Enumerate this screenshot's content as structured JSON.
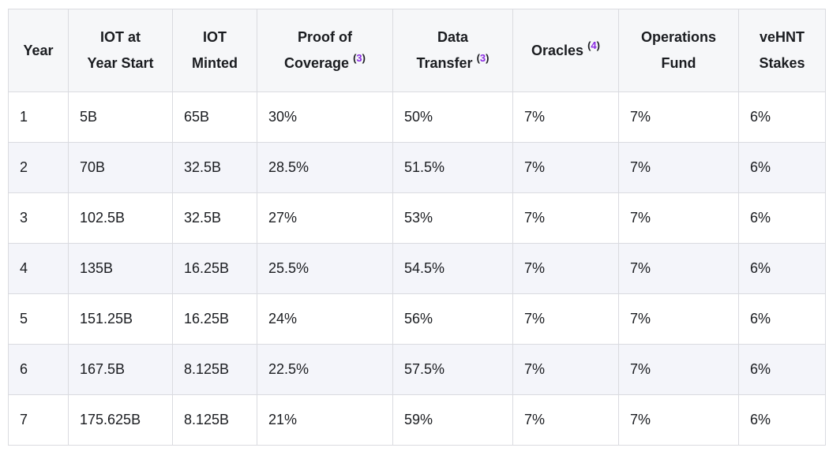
{
  "table": {
    "columns": [
      {
        "id": "year",
        "lines": [
          "Year"
        ],
        "footnote": null
      },
      {
        "id": "iot-at-year-start",
        "lines": [
          "IOT at",
          "Year Start"
        ],
        "footnote": null
      },
      {
        "id": "iot-minted",
        "lines": [
          "IOT",
          "Minted"
        ],
        "footnote": null
      },
      {
        "id": "proof-of-coverage",
        "lines": [
          "Proof of",
          "Coverage"
        ],
        "footnote": "3"
      },
      {
        "id": "data-transfer",
        "lines": [
          "Data",
          "Transfer"
        ],
        "footnote": "3"
      },
      {
        "id": "oracles",
        "lines": [
          "Oracles"
        ],
        "footnote": "4"
      },
      {
        "id": "operations-fund",
        "lines": [
          "Operations",
          "Fund"
        ],
        "footnote": null
      },
      {
        "id": "vehnt-stakes",
        "lines": [
          "veHNT",
          "Stakes"
        ],
        "footnote": null
      }
    ],
    "rows": [
      [
        "1",
        "5B",
        "65B",
        "30%",
        "50%",
        "7%",
        "7%",
        "6%"
      ],
      [
        "2",
        "70B",
        "32.5B",
        "28.5%",
        "51.5%",
        "7%",
        "7%",
        "6%"
      ],
      [
        "3",
        "102.5B",
        "32.5B",
        "27%",
        "53%",
        "7%",
        "7%",
        "6%"
      ],
      [
        "4",
        "135B",
        "16.25B",
        "25.5%",
        "54.5%",
        "7%",
        "7%",
        "6%"
      ],
      [
        "5",
        "151.25B",
        "16.25B",
        "24%",
        "56%",
        "7%",
        "7%",
        "6%"
      ],
      [
        "6",
        "167.5B",
        "8.125B",
        "22.5%",
        "57.5%",
        "7%",
        "7%",
        "6%"
      ],
      [
        "7",
        "175.625B",
        "8.125B",
        "21%",
        "59%",
        "7%",
        "7%",
        "6%"
      ]
    ]
  },
  "colors": {
    "page_bg": "#ffffff",
    "header_bg": "#f6f7f9",
    "row_bg": "#ffffff",
    "row_alt_bg": "#f4f5fa",
    "border": "#dadbe0",
    "text": "#1a1c20",
    "footnote_accent": "#8a2be2"
  }
}
